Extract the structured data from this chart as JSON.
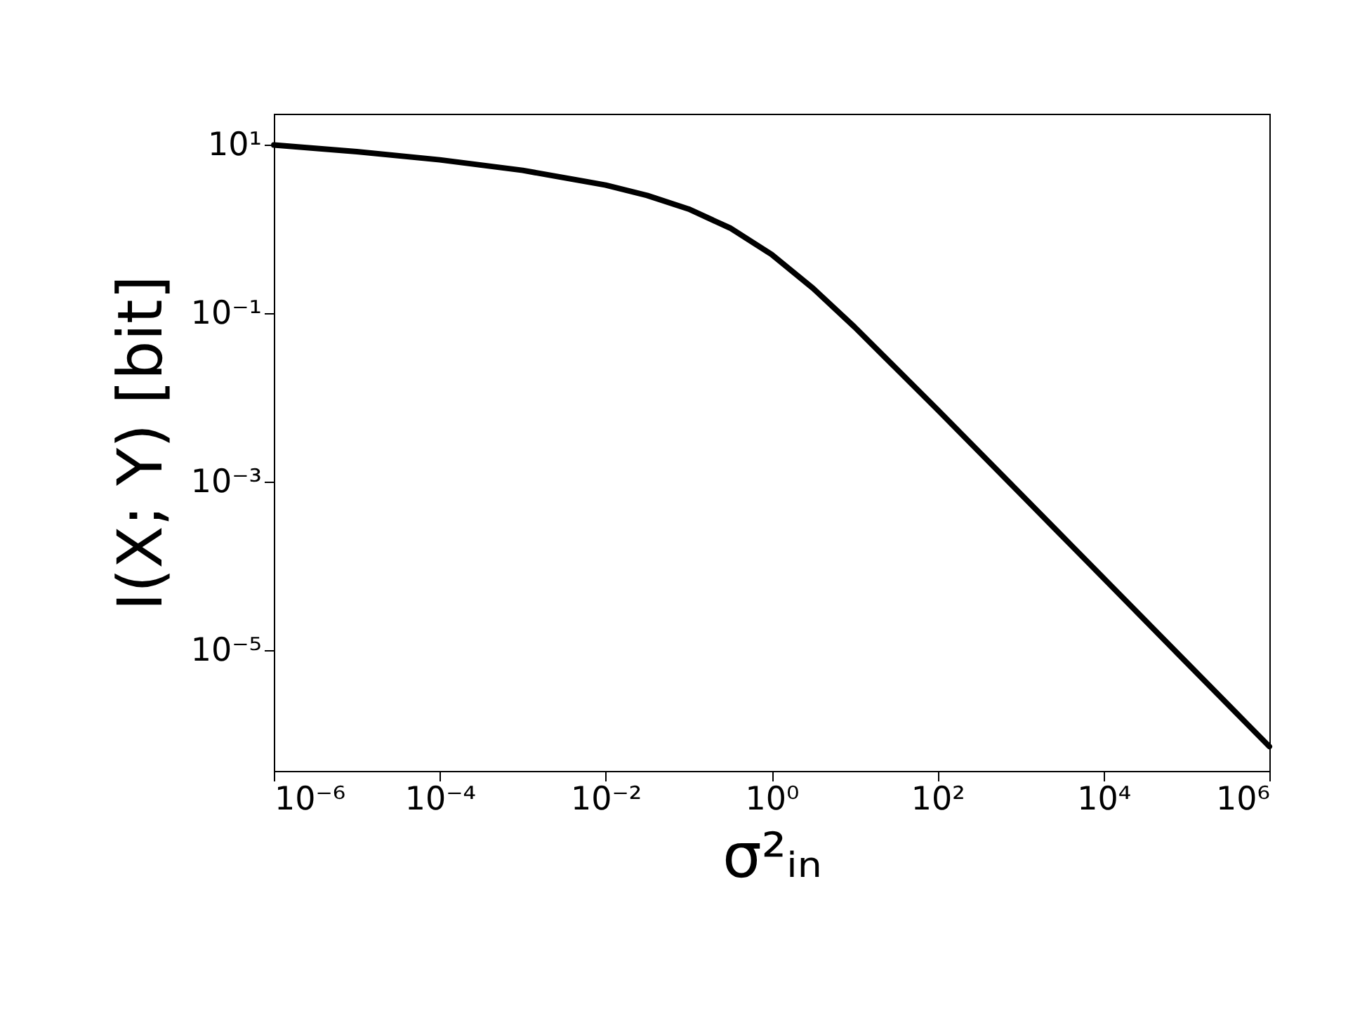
{
  "chart_data": {
    "type": "line",
    "xlabel": "σ²ᵢₙ",
    "ylabel": "I(X; Y) [bit]",
    "x": [
      1e-06,
      1e-05,
      0.0001,
      0.001,
      0.01,
      0.0316,
      0.1,
      0.316,
      1,
      3.16,
      10,
      100,
      1000,
      10000,
      100000,
      1000000
    ],
    "series": [
      {
        "color": "#000000",
        "values": [
          9.97,
          8.3,
          6.64,
          4.98,
          3.33,
          2.51,
          1.73,
          1.03,
          0.5,
          0.198,
          0.0688,
          0.00718,
          0.000721,
          7.21e-05,
          7.2e-06,
          7.2e-07
        ]
      }
    ],
    "log": "xy",
    "grid": false,
    "marker": "none",
    "line_style": "solid",
    "xlim": [
      1e-06,
      1000000
    ],
    "ylim": [
      3.7e-07,
      23.4
    ],
    "xticks": [
      {
        "value": 1e-06,
        "label": "10⁻⁶"
      },
      {
        "value": 0.0001,
        "label": "10⁻⁴"
      },
      {
        "value": 0.01,
        "label": "10⁻²"
      },
      {
        "value": 1,
        "label": "10⁰"
      },
      {
        "value": 100,
        "label": "10²"
      },
      {
        "value": 10000,
        "label": "10⁴"
      },
      {
        "value": 1000000,
        "label": "10⁶"
      }
    ],
    "yticks": [
      {
        "value": 1e-05,
        "label": "10⁻⁵"
      },
      {
        "value": 0.001,
        "label": "10⁻³"
      },
      {
        "value": 0.1,
        "label": "10⁻¹"
      },
      {
        "value": 10,
        "label": "10¹"
      }
    ]
  }
}
